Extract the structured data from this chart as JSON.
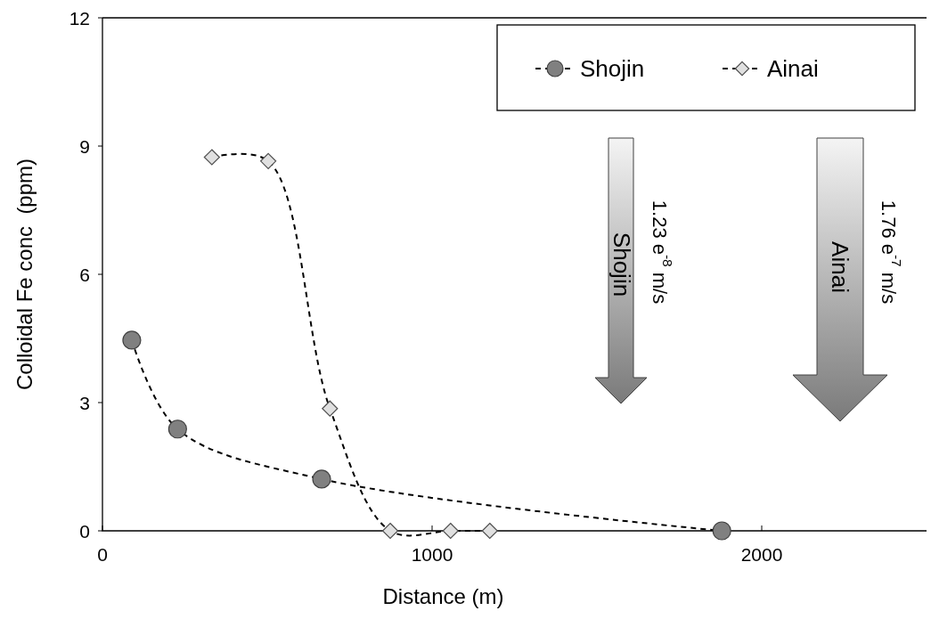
{
  "chart_data": {
    "type": "line",
    "xlabel": "Distance (m)",
    "ylabel": "Colloidal Fe conc  (ppm)",
    "xlim": [
      0,
      2500
    ],
    "xticks": [
      0,
      1000,
      2000
    ],
    "ylim": [
      0,
      12
    ],
    "yticks": [
      0,
      3,
      6,
      9,
      12
    ],
    "grid": false,
    "legend": "top right",
    "line_style": "dashed",
    "series": [
      {
        "name": "Shojin",
        "color": "#808080",
        "marker": "circle",
        "x": [
          89,
          228,
          665,
          1879
        ],
        "values": [
          4.46,
          2.38,
          1.21,
          0
        ]
      },
      {
        "name": "Ainai",
        "color": "#e0e0e0",
        "marker": "diamond",
        "x": [
          332,
          503,
          690,
          873,
          1056,
          1175
        ],
        "values": [
          8.74,
          8.65,
          2.86,
          0,
          0,
          0
        ]
      }
    ],
    "annotations": [
      "Shojin",
      "1.23 e$^{-8}$ m/s",
      "Ainai",
      "1.76 e$^{-7}$ m/s"
    ]
  }
}
